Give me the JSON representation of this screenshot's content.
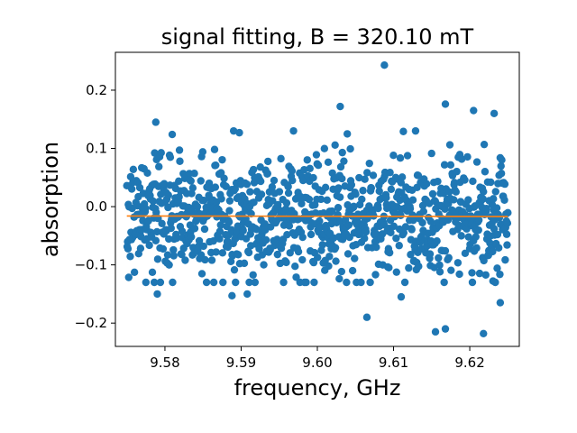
{
  "chart_data": {
    "type": "scatter",
    "title": "signal fitting, B = 320.10 mT",
    "xlabel": "frequency, GHz",
    "ylabel": "absorption",
    "xlim": [
      9.5735,
      9.6265
    ],
    "ylim": [
      -0.24,
      0.265
    ],
    "x_ticks": [
      9.58,
      9.59,
      9.6,
      9.61,
      9.62
    ],
    "x_tick_labels": [
      "9.58",
      "9.59",
      "9.60",
      "9.61",
      "9.62"
    ],
    "y_ticks": [
      -0.2,
      -0.1,
      0.0,
      0.1,
      0.2
    ],
    "y_tick_labels": [
      "−0.2",
      "−0.1",
      "0.0",
      "0.1",
      "0.2"
    ],
    "grid": false,
    "legend": "none",
    "scatter_color": "#1f77b4",
    "fit_color": "#ff7f0e",
    "series": [
      {
        "kind": "scatter",
        "n_points": 1000,
        "x_range": [
          9.575,
          9.625
        ],
        "mean": -0.015,
        "std": 0.055,
        "highlight_points": [
          [
            9.6088,
            0.243
          ],
          [
            9.5788,
            0.145
          ],
          [
            9.6168,
            0.176
          ],
          [
            9.603,
            0.172
          ],
          [
            9.6205,
            0.165
          ],
          [
            9.6232,
            0.16
          ],
          [
            9.579,
            -0.15
          ],
          [
            9.5888,
            -0.153
          ],
          [
            9.5908,
            -0.15
          ],
          [
            9.6065,
            -0.19
          ],
          [
            9.6155,
            -0.215
          ],
          [
            9.6168,
            -0.21
          ],
          [
            9.6218,
            -0.218
          ],
          [
            9.624,
            -0.165
          ],
          [
            9.611,
            -0.155
          ]
        ]
      },
      {
        "kind": "line",
        "name": "",
        "x": [
          9.575,
          9.625
        ],
        "y": [
          -0.016,
          -0.017
        ]
      }
    ]
  }
}
